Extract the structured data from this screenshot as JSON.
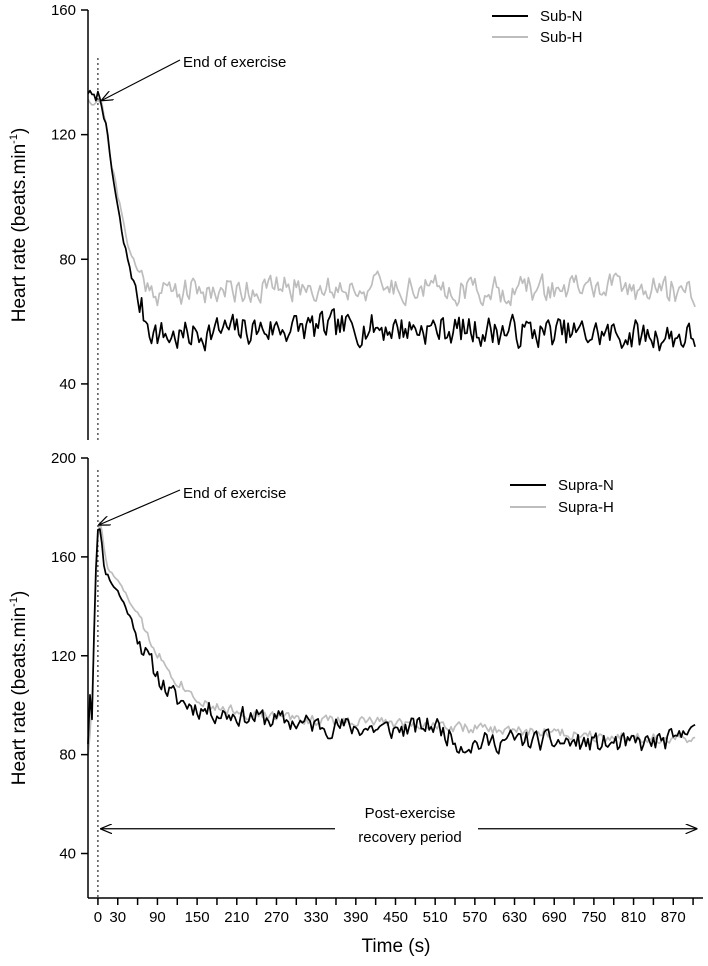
{
  "chart_data": [
    {
      "type": "line",
      "panel": "top",
      "ylabel": "Heart rate (beats.min",
      "ylabel_sup": "-1",
      "ylabel_tail": ")",
      "ylim": [
        22,
        160
      ],
      "yticks": [
        40,
        80,
        120,
        160
      ],
      "xlim": [
        -15,
        915
      ],
      "annotation": "End of exercise",
      "end_of_exercise_x": 0,
      "arrow_target": {
        "x": 6,
        "y": 131
      },
      "legend_position": "top-right",
      "legend": [
        "Sub-N",
        "Sub-H"
      ],
      "series": [
        {
          "name": "Sub-N",
          "color": "#000000",
          "anchors": [
            [
              -15,
              134
            ],
            [
              -5,
              131
            ],
            [
              0,
              133
            ],
            [
              5,
              131
            ],
            [
              10,
              126
            ],
            [
              20,
              110
            ],
            [
              30,
              96
            ],
            [
              40,
              84
            ],
            [
              50,
              76
            ],
            [
              60,
              68
            ],
            [
              70,
              62
            ],
            [
              80,
              58
            ],
            [
              90,
              56
            ],
            [
              120,
              55
            ],
            [
              180,
              57
            ],
            [
              300,
              58
            ],
            [
              450,
              58
            ],
            [
              600,
              57
            ],
            [
              750,
              56
            ],
            [
              900,
              55
            ]
          ],
          "noise": 4.5,
          "seed": 7
        },
        {
          "name": "Sub-H",
          "color": "#bdbdbd",
          "anchors": [
            [
              -15,
              132
            ],
            [
              -5,
              130
            ],
            [
              0,
              132
            ],
            [
              5,
              130
            ],
            [
              10,
              126
            ],
            [
              20,
              112
            ],
            [
              30,
              100
            ],
            [
              40,
              90
            ],
            [
              50,
              82
            ],
            [
              60,
              76
            ],
            [
              75,
              72
            ],
            [
              90,
              70
            ],
            [
              150,
              70
            ],
            [
              300,
              71
            ],
            [
              450,
              71
            ],
            [
              600,
              70
            ],
            [
              750,
              71
            ],
            [
              900,
              70
            ]
          ],
          "noise": 4,
          "seed": 21
        }
      ]
    },
    {
      "type": "line",
      "panel": "bottom",
      "ylabel": "Heart rate (beats.min",
      "ylabel_sup": "-1",
      "ylabel_tail": ")",
      "xlabel": "Time (s)",
      "ylim": [
        22,
        200
      ],
      "yticks": [
        40,
        80,
        120,
        160,
        200
      ],
      "xlim": [
        -15,
        915
      ],
      "xticks": [
        0,
        30,
        90,
        150,
        210,
        270,
        330,
        390,
        450,
        510,
        570,
        630,
        690,
        750,
        810,
        870
      ],
      "annotation": "End of exercise",
      "recovery_line1": "Post-exercise",
      "recovery_line2": "recovery period",
      "recovery_range": [
        5,
        905
      ],
      "recovery_y": 50,
      "end_of_exercise_x": 0,
      "arrow_target": {
        "x": 2,
        "y": 173
      },
      "legend_position": "top-right",
      "legend": [
        "Supra-N",
        "Supra-H"
      ],
      "series": [
        {
          "name": "Supra-N",
          "color": "#000000",
          "anchors": [
            [
              -15,
              85
            ],
            [
              -12,
              105
            ],
            [
              -9,
              95
            ],
            [
              -6,
              130
            ],
            [
              -3,
              155
            ],
            [
              0,
              170
            ],
            [
              3,
              172
            ],
            [
              6,
              165
            ],
            [
              10,
              155
            ],
            [
              20,
              150
            ],
            [
              30,
              146
            ],
            [
              45,
              138
            ],
            [
              60,
              128
            ],
            [
              75,
              119
            ],
            [
              90,
              112
            ],
            [
              105,
              106
            ],
            [
              120,
              102
            ],
            [
              150,
              99
            ],
            [
              180,
              97
            ],
            [
              240,
              95
            ],
            [
              330,
              92
            ],
            [
              450,
              90
            ],
            [
              510,
              92
            ],
            [
              550,
              84
            ],
            [
              630,
              86
            ],
            [
              700,
              85
            ],
            [
              800,
              84
            ],
            [
              880,
              86
            ],
            [
              895,
              95
            ],
            [
              905,
              88
            ]
          ],
          "noise": 3.8,
          "seed": 11
        },
        {
          "name": "Supra-H",
          "color": "#bdbdbd",
          "anchors": [
            [
              -15,
              80
            ],
            [
              -10,
              95
            ],
            [
              -6,
              125
            ],
            [
              -3,
              150
            ],
            [
              0,
              168
            ],
            [
              3,
              174
            ],
            [
              6,
              170
            ],
            [
              10,
              162
            ],
            [
              15,
              155
            ],
            [
              25,
              152
            ],
            [
              40,
              146
            ],
            [
              60,
              136
            ],
            [
              80,
              126
            ],
            [
              100,
              117
            ],
            [
              120,
              110
            ],
            [
              150,
              103
            ],
            [
              180,
              99
            ],
            [
              240,
              96
            ],
            [
              330,
              94
            ],
            [
              450,
              93
            ],
            [
              600,
              90
            ],
            [
              750,
              88
            ],
            [
              900,
              86
            ],
            [
              905,
              84
            ]
          ],
          "noise": 2,
          "seed": 33
        }
      ]
    }
  ]
}
